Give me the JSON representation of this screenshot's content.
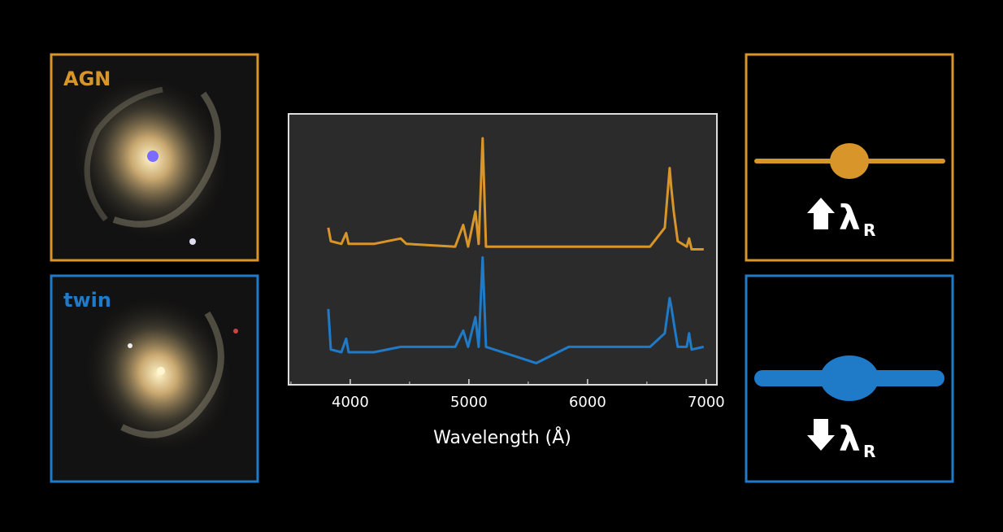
{
  "labels": {
    "agn": "AGN",
    "twin": "twin"
  },
  "indicators": [
    {
      "symbol": "λ",
      "subscript": "R"
    },
    {
      "symbol": "λ",
      "subscript": "R"
    }
  ],
  "chart_data": {
    "type": "line",
    "x_label": "Wavelength (Å)",
    "x": [
      3815,
      3836,
      3925,
      3966,
      3986,
      4199,
      4425,
      4473,
      4884,
      4952,
      4993,
      5055,
      5082,
      5116,
      5144,
      5568,
      5842,
      6527,
      6651,
      6692,
      6705,
      6726,
      6760,
      6836,
      6856,
      6877,
      6979
    ],
    "series": [
      {
        "name": "AGN",
        "color": "#d8952a",
        "values": [
          5.8,
          5.3,
          5.2,
          5.6,
          5.2,
          5.2,
          5.4,
          5.2,
          5.1,
          5.9,
          5.1,
          6.4,
          5.2,
          9.1,
          5.1,
          5.1,
          5.1,
          5.1,
          5.8,
          8.0,
          7.3,
          6.4,
          5.3,
          5.1,
          5.4,
          5.0,
          5.0
        ]
      },
      {
        "name": "twin",
        "color": "#1f7ac8",
        "values": [
          2.8,
          1.3,
          1.2,
          1.7,
          1.2,
          1.2,
          1.4,
          1.4,
          1.4,
          2.0,
          1.4,
          2.5,
          1.4,
          4.7,
          1.4,
          0.8,
          1.4,
          1.4,
          1.9,
          3.2,
          2.9,
          2.3,
          1.4,
          1.4,
          1.9,
          1.3,
          1.4
        ]
      }
    ],
    "xlim": [
      3480,
      7090
    ],
    "ylim": [
      0,
      10
    ],
    "xticks": [
      4000,
      5000,
      6000,
      7000
    ],
    "xminorticks": [
      3500,
      4500,
      5500,
      6500
    ]
  }
}
